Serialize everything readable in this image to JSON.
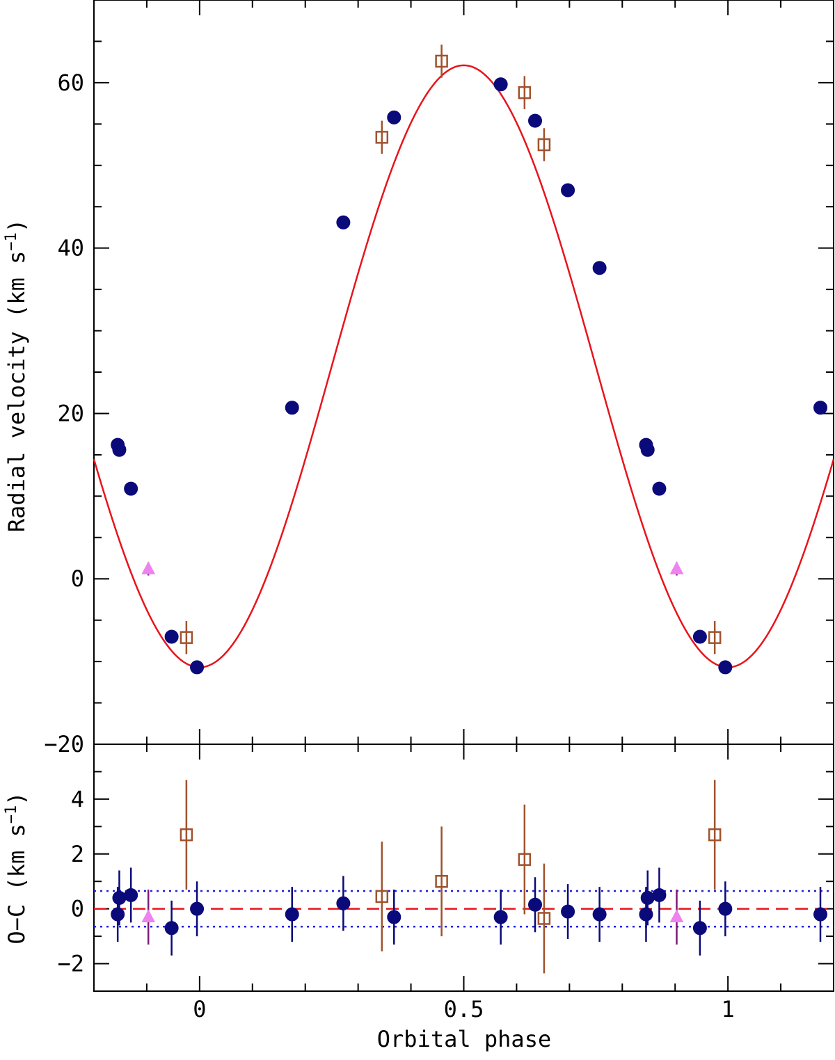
{
  "chart_data": [
    {
      "type": "scatter",
      "panel": "radial-velocity",
      "title": "",
      "xlabel": "",
      "ylabel": "Radial velocity (km s⁻¹)",
      "ylabel_main": "Radial velocity (km s",
      "ylabel_exp": "−1",
      "ylabel_close": ")",
      "xlim": [
        -0.2,
        1.2
      ],
      "ylim": [
        -20,
        70
      ],
      "yticks": [
        -20,
        0,
        20,
        40,
        60
      ],
      "ytick_labels": [
        "−20",
        "0",
        "20",
        "40",
        "60"
      ],
      "model": {
        "name": "orbit-fit",
        "gamma": 25.7,
        "amplitude": 36.4,
        "min_phase": 0.0,
        "color": "#e8141c"
      },
      "series": [
        {
          "name": "filled-circles",
          "color": "#0a0a7a",
          "x": [
            -0.155,
            -0.152,
            -0.13,
            -0.053,
            -0.005,
            0.175,
            0.272,
            0.368,
            0.57,
            0.635,
            0.697,
            0.757,
            0.845,
            0.848,
            0.87,
            0.947,
            0.995,
            1.175
          ],
          "y": [
            16.2,
            15.6,
            10.9,
            -7.0,
            -10.7,
            20.7,
            43.1,
            55.8,
            59.8,
            55.4,
            47.0,
            37.6,
            16.2,
            15.6,
            10.9,
            -7.0,
            -10.7,
            20.7
          ]
        },
        {
          "name": "open-squares",
          "color": "#a0522d",
          "x": [
            -0.025,
            0.345,
            0.458,
            0.615,
            0.652,
            0.975
          ],
          "y": [
            -7.1,
            53.4,
            62.6,
            58.8,
            52.5,
            -7.1
          ],
          "err": [
            2.0,
            2.0,
            2.0,
            2.0,
            2.0,
            2.0
          ]
        },
        {
          "name": "filled-triangles",
          "color": "#ee82ee",
          "x": [
            -0.097,
            0.903
          ],
          "y": [
            1.2,
            1.2
          ]
        }
      ]
    },
    {
      "type": "scatter",
      "panel": "residuals",
      "title": "",
      "xlabel": "Orbital phase",
      "ylabel": "O−C (km s⁻¹)",
      "ylabel_main": "O−C (km s",
      "ylabel_exp": "−1",
      "ylabel_close": ")",
      "xlim": [
        -0.2,
        1.2
      ],
      "ylim": [
        -3.0,
        6.0
      ],
      "xticks": [
        0,
        0.5,
        1
      ],
      "xtick_labels": [
        "0",
        "0.5",
        "1"
      ],
      "yticks": [
        -2,
        0,
        2,
        4
      ],
      "ytick_labels": [
        "−2",
        "0",
        "2",
        "4"
      ],
      "reference_lines": {
        "zero": 0,
        "rms_upper": 0.65,
        "rms_lower": -0.65,
        "zero_color": "#e8141c",
        "rms_color": "#1f1fe0"
      },
      "series": [
        {
          "name": "filled-circles",
          "color": "#0a0a7a",
          "x": [
            -0.155,
            -0.152,
            -0.13,
            -0.053,
            -0.005,
            0.175,
            0.272,
            0.368,
            0.57,
            0.635,
            0.697,
            0.757,
            0.845,
            0.848,
            0.87,
            0.947,
            0.995,
            1.175
          ],
          "y": [
            -0.2,
            0.4,
            0.5,
            -0.7,
            0.0,
            -0.2,
            0.2,
            -0.3,
            -0.3,
            0.15,
            -0.1,
            -0.2,
            -0.2,
            0.4,
            0.5,
            -0.7,
            0.0,
            -0.2
          ],
          "err": [
            1.0,
            1.0,
            1.0,
            1.0,
            1.0,
            1.0,
            1.0,
            1.0,
            1.0,
            1.0,
            1.0,
            1.0,
            1.0,
            1.0,
            1.0,
            1.0,
            1.0,
            1.0
          ]
        },
        {
          "name": "open-squares",
          "color": "#a0522d",
          "x": [
            -0.025,
            0.345,
            0.458,
            0.615,
            0.652,
            0.975
          ],
          "y": [
            2.7,
            0.45,
            1.0,
            1.8,
            -0.35,
            2.7
          ],
          "err": [
            2.0,
            2.0,
            2.0,
            2.0,
            2.0,
            2.0
          ]
        },
        {
          "name": "filled-triangles",
          "color": "#ee82ee",
          "x": [
            -0.097,
            0.903
          ],
          "y": [
            -0.3,
            -0.3
          ],
          "err": [
            1.0,
            1.0
          ]
        }
      ]
    }
  ]
}
